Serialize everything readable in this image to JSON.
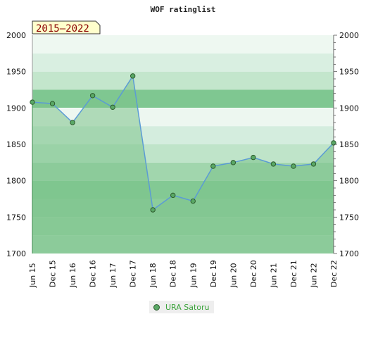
{
  "chart_data": {
    "type": "area",
    "title": "WOF ratinglist",
    "period": "2015–2022",
    "x": [
      "Jun 15",
      "Dec 15",
      "Jun 16",
      "Dec 16",
      "Jun 17",
      "Dec 17",
      "Jun 18",
      "Dec 18",
      "Jun 19",
      "Dec 19",
      "Jun 20",
      "Dec 20",
      "Jun 21",
      "Dec 21",
      "Jun 22",
      "Dec 22"
    ],
    "series": [
      {
        "name": "URA Satoru",
        "values": [
          1908,
          1906,
          1880,
          1917,
          1901,
          1944,
          1760,
          1780,
          1772,
          1820,
          1825,
          1832,
          1823,
          1820,
          1823,
          1852
        ]
      }
    ],
    "ylim": [
      1700,
      2000
    ],
    "yticks": [
      1700,
      1750,
      1800,
      1850,
      1900,
      1950,
      2000
    ],
    "grid": "horizontal bands",
    "legend": "bottom-center",
    "colors": {
      "line": "#5b9bd5",
      "area": "#7bc38b",
      "point": "#5aa866",
      "point_border": "#2d5c2d",
      "period_bg": "#ffffcc"
    }
  }
}
